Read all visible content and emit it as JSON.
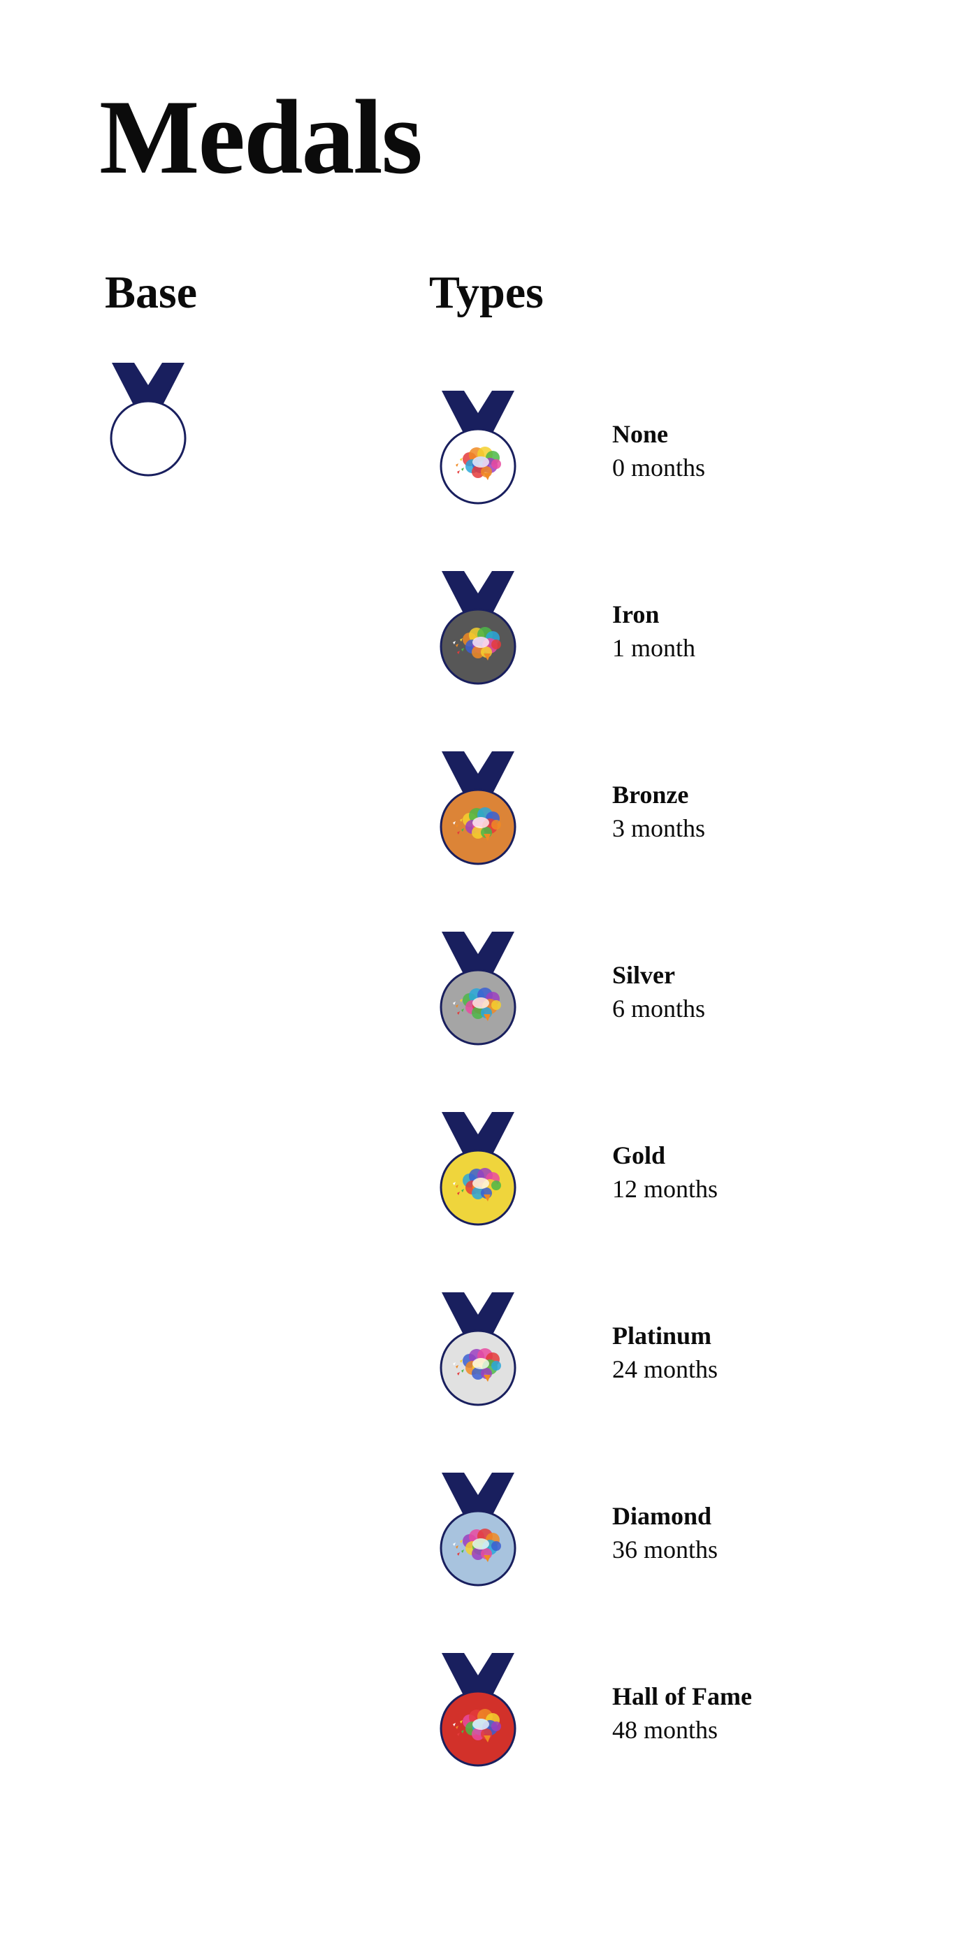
{
  "page": {
    "title": "Medals"
  },
  "columns": {
    "base_heading": "Base",
    "types_heading": "Types"
  },
  "base_medal": {
    "icon": "medal-base-icon",
    "fill": "#ffffff"
  },
  "colors": {
    "ribbon": "#191f5e",
    "outline": "#191f5e"
  },
  "types": [
    {
      "name": "None",
      "duration": "0 months",
      "fill": "#ffffff",
      "icon": "brain-icon"
    },
    {
      "name": "Iron",
      "duration": "1 month",
      "fill": "#575757",
      "icon": "brain-icon"
    },
    {
      "name": "Bronze",
      "duration": "3 months",
      "fill": "#dc8437",
      "icon": "brain-icon"
    },
    {
      "name": "Silver",
      "duration": "6 months",
      "fill": "#a5a5a5",
      "icon": "brain-icon"
    },
    {
      "name": "Gold",
      "duration": "12 months",
      "fill": "#efd53c",
      "icon": "brain-icon"
    },
    {
      "name": "Platinum",
      "duration": "24 months",
      "fill": "#e1e1e1",
      "icon": "brain-icon"
    },
    {
      "name": "Diamond",
      "duration": "36 months",
      "fill": "#a8c3de",
      "icon": "brain-icon"
    },
    {
      "name": "Hall of Fame",
      "duration": "48 months",
      "fill": "#d2312a",
      "icon": "brain-icon"
    }
  ]
}
